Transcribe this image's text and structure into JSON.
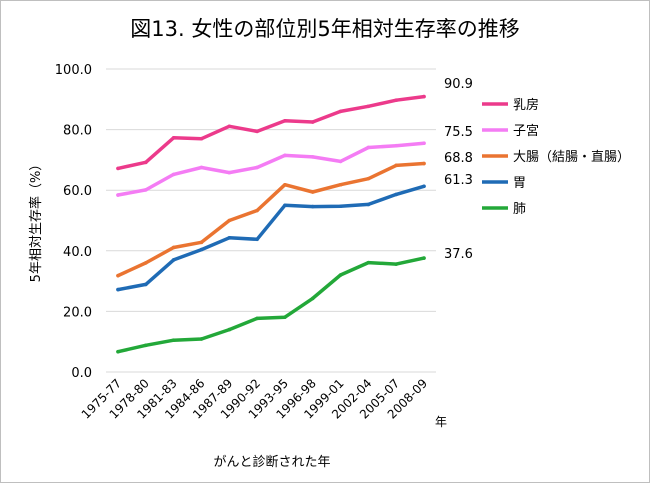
{
  "chart_data": {
    "type": "line",
    "title": "図13. 女性の部位別5年相対生存率の推移",
    "xlabel": "がんと診断された年",
    "ylabel": "5年相対生存率（%）",
    "x_unit": "年",
    "categories": [
      "1975-77",
      "1978-80",
      "1981-83",
      "1984-86",
      "1987-89",
      "1990-92",
      "1993-95",
      "1996-98",
      "1999-01",
      "2002-04",
      "2005-07",
      "2008-09"
    ],
    "ylim": [
      0,
      100
    ],
    "yticks": [
      "0.0",
      "20.0",
      "40.0",
      "60.0",
      "80.0",
      "100.0"
    ],
    "ytick_values": [
      0,
      20,
      40,
      60,
      80,
      100
    ],
    "grid": true,
    "legend_position": "right",
    "series": [
      {
        "name": "乳房",
        "color": "#ec3a8b",
        "end_label": "90.9",
        "values": [
          67.2,
          69.2,
          77.3,
          77.0,
          81.1,
          79.4,
          82.9,
          82.5,
          86.0,
          87.7,
          89.7,
          90.9
        ]
      },
      {
        "name": "子宮",
        "color": "#f47cf4",
        "end_label": "75.5",
        "values": [
          58.4,
          60.1,
          65.2,
          67.5,
          65.8,
          67.5,
          71.5,
          71.0,
          69.5,
          74.1,
          74.7,
          75.5
        ]
      },
      {
        "name": "大腸（結腸・直腸）",
        "color": "#ea7431",
        "end_label": "68.8",
        "values": [
          31.8,
          36.0,
          41.1,
          42.8,
          50.0,
          53.3,
          61.8,
          59.4,
          61.8,
          63.8,
          68.2,
          68.8
        ]
      },
      {
        "name": "胃",
        "color": "#1f6bb5",
        "end_label": "61.3",
        "values": [
          27.2,
          28.9,
          37.0,
          40.4,
          44.3,
          43.8,
          55.0,
          54.6,
          54.7,
          55.3,
          58.6,
          61.3
        ]
      },
      {
        "name": "肺",
        "color": "#23a839",
        "end_label": "37.6",
        "values": [
          6.7,
          8.8,
          10.5,
          10.9,
          14.0,
          17.7,
          18.1,
          24.3,
          32.0,
          36.1,
          35.6,
          37.6
        ]
      }
    ]
  }
}
